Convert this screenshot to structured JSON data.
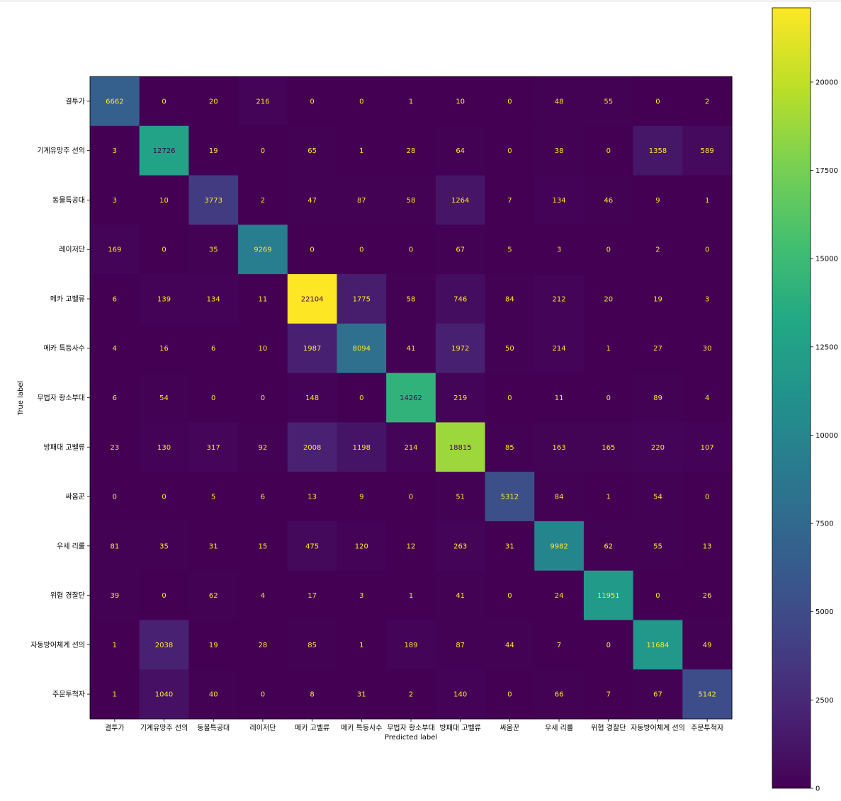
{
  "chart_data": {
    "type": "heatmap",
    "title": "",
    "xlabel": "Predicted label",
    "ylabel": "True label",
    "labels": [
      "결투가",
      "기계유망주 선의",
      "동물특공대",
      "레이저단",
      "메카 고벨류",
      "메카 특등사수",
      "무법자 황소부대",
      "방패대 고벨류",
      "싸움꾼",
      "우세 리룰",
      "위협 경찰단",
      "자동방어체계 선의",
      "주문투척자"
    ],
    "matrix": [
      [
        6662,
        0,
        20,
        216,
        0,
        0,
        1,
        10,
        0,
        48,
        55,
        0,
        2
      ],
      [
        3,
        12726,
        19,
        0,
        65,
        1,
        28,
        64,
        0,
        38,
        0,
        1358,
        589
      ],
      [
        3,
        10,
        3773,
        2,
        47,
        87,
        58,
        1264,
        7,
        134,
        46,
        9,
        1
      ],
      [
        169,
        0,
        35,
        9269,
        0,
        0,
        0,
        67,
        5,
        3,
        0,
        2,
        0
      ],
      [
        6,
        139,
        134,
        11,
        22104,
        1775,
        58,
        746,
        84,
        212,
        20,
        19,
        3
      ],
      [
        4,
        16,
        6,
        10,
        1987,
        8094,
        41,
        1972,
        50,
        214,
        1,
        27,
        30
      ],
      [
        6,
        54,
        0,
        0,
        148,
        0,
        14262,
        219,
        0,
        11,
        0,
        89,
        4
      ],
      [
        23,
        130,
        317,
        92,
        2008,
        1198,
        214,
        18815,
        85,
        163,
        165,
        220,
        107
      ],
      [
        0,
        0,
        5,
        6,
        13,
        9,
        0,
        51,
        5312,
        84,
        1,
        54,
        0
      ],
      [
        81,
        35,
        31,
        15,
        475,
        120,
        12,
        263,
        31,
        9982,
        62,
        55,
        13
      ],
      [
        39,
        0,
        62,
        4,
        17,
        3,
        1,
        41,
        0,
        24,
        11951,
        0,
        26
      ],
      [
        1,
        2038,
        19,
        28,
        85,
        1,
        189,
        87,
        44,
        7,
        0,
        11684,
        49
      ],
      [
        1,
        1040,
        40,
        0,
        8,
        31,
        2,
        140,
        0,
        66,
        7,
        67,
        5142
      ]
    ],
    "colormap": "viridis",
    "vmin": 0,
    "vmax": 22104,
    "colorbar_ticks": [
      0,
      2500,
      5000,
      7500,
      10000,
      12500,
      15000,
      17500,
      20000
    ],
    "text_color_light": "#fde725",
    "text_color_dark": "#440154"
  }
}
